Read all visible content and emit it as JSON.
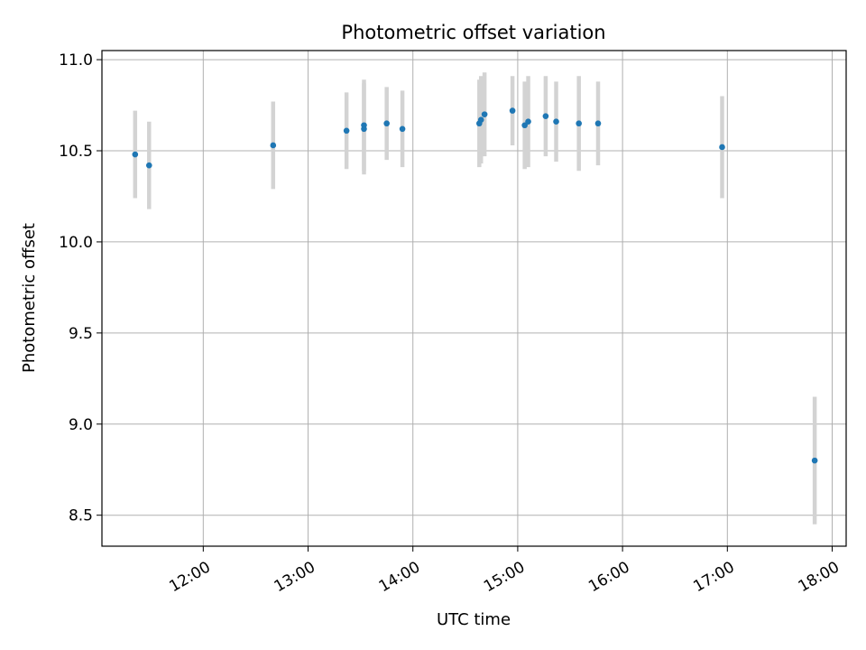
{
  "chart_data": {
    "type": "scatter",
    "title": "Photometric offset variation",
    "xlabel": "UTC time",
    "ylabel": "Photometric offset",
    "xlim": [
      "11:02",
      "18:08"
    ],
    "ylim": [
      8.33,
      11.05
    ],
    "x_ticks": [
      "12:00",
      "13:00",
      "14:00",
      "15:00",
      "16:00",
      "17:00",
      "18:00"
    ],
    "y_ticks": [
      8.5,
      9.0,
      9.5,
      10.0,
      10.5,
      11.0
    ],
    "y_tick_labels": [
      "8.5",
      "9.0",
      "9.5",
      "10.0",
      "10.5",
      "11.0"
    ],
    "grid": true,
    "marker_color": "#1f77b4",
    "errorbar_color": "#d3d3d3",
    "points": [
      {
        "x": "11:21",
        "y": 10.48,
        "err": 0.24
      },
      {
        "x": "11:29",
        "y": 10.42,
        "err": 0.24
      },
      {
        "x": "12:40",
        "y": 10.53,
        "err": 0.24
      },
      {
        "x": "13:22",
        "y": 10.61,
        "err": 0.21
      },
      {
        "x": "13:32",
        "y": 10.64,
        "err": 0.25
      },
      {
        "x": "13:32",
        "y": 10.62,
        "err": 0.25
      },
      {
        "x": "13:45",
        "y": 10.65,
        "err": 0.2
      },
      {
        "x": "13:54",
        "y": 10.62,
        "err": 0.21
      },
      {
        "x": "14:38",
        "y": 10.65,
        "err": 0.24
      },
      {
        "x": "14:39",
        "y": 10.67,
        "err": 0.24
      },
      {
        "x": "14:41",
        "y": 10.7,
        "err": 0.23
      },
      {
        "x": "14:57",
        "y": 10.72,
        "err": 0.19
      },
      {
        "x": "15:04",
        "y": 10.64,
        "err": 0.24
      },
      {
        "x": "15:06",
        "y": 10.66,
        "err": 0.25
      },
      {
        "x": "15:16",
        "y": 10.69,
        "err": 0.22
      },
      {
        "x": "15:22",
        "y": 10.66,
        "err": 0.22
      },
      {
        "x": "15:35",
        "y": 10.65,
        "err": 0.26
      },
      {
        "x": "15:46",
        "y": 10.65,
        "err": 0.23
      },
      {
        "x": "16:57",
        "y": 10.52,
        "err": 0.28
      },
      {
        "x": "17:50",
        "y": 8.8,
        "err": 0.35
      }
    ]
  }
}
